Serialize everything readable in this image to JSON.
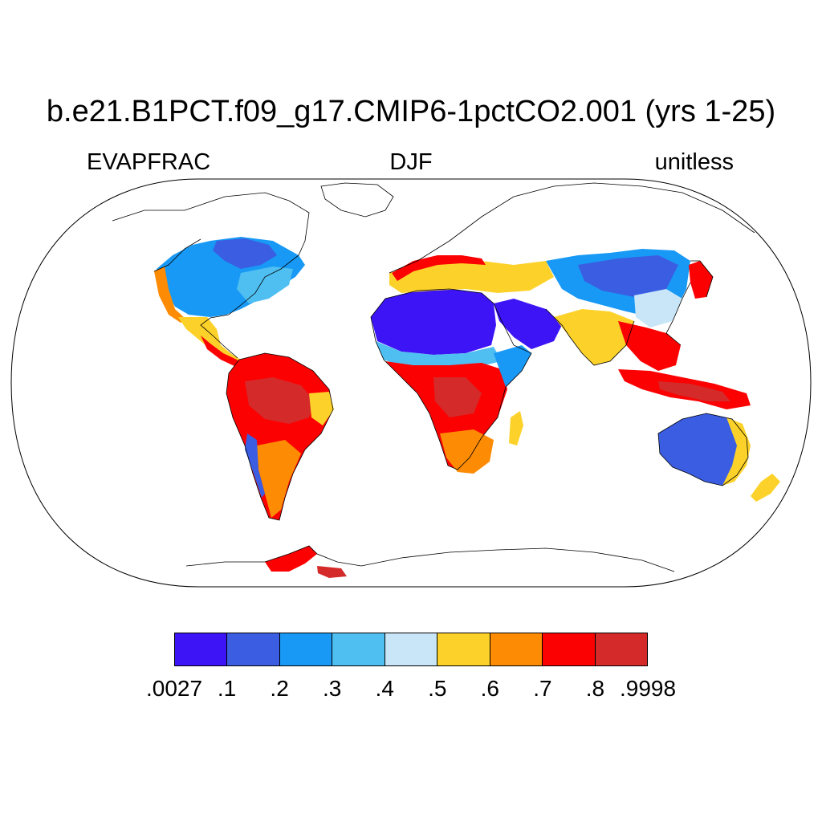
{
  "title": "b.e21.B1PCT.f09_g17.CMIP6-1pctCO2.001 (yrs 1-25)",
  "left_string": "EVAPFRAC",
  "center_string": "DJF",
  "right_string": "unitless",
  "colorbar": {
    "colors": [
      "#3c14f5",
      "#3a5de2",
      "#1899f5",
      "#4ebff0",
      "#c8e6f8",
      "#fcd22a",
      "#fd8b03",
      "#fc0102",
      "#d42a2a"
    ],
    "labels": [
      ".0027",
      ".1",
      ".2",
      ".3",
      ".4",
      ".5",
      ".6",
      ".7",
      ".8",
      ".9998"
    ]
  },
  "colors": {
    "land_outline": "#000000",
    "map_border": "#000000",
    "background": "#ffffff"
  }
}
